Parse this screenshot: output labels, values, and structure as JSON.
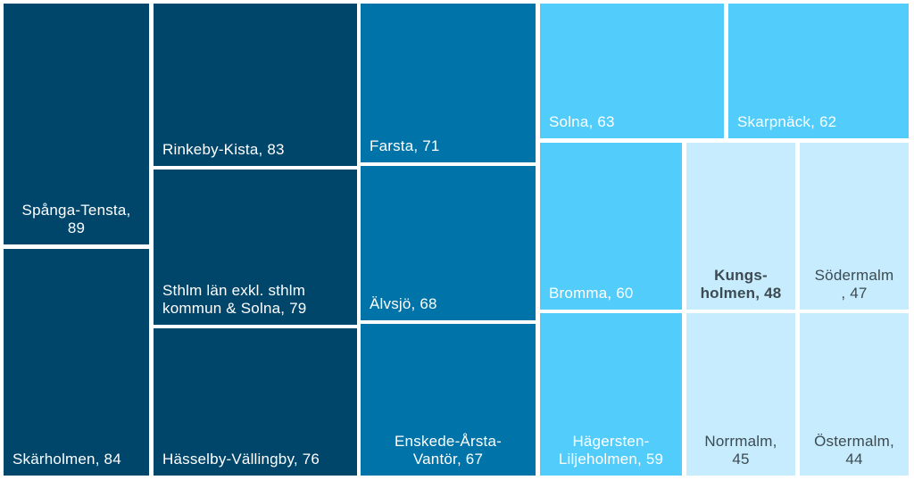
{
  "chart_data": {
    "type": "treemap",
    "title": "",
    "colors": {
      "dark": "#00466b",
      "mid": "#0074a8",
      "light": "#52cdfb",
      "pale": "#c6ecfd",
      "text_light": "#ffffff",
      "text_dark": "#3d4a52"
    },
    "items": [
      {
        "label": "Spånga-Tensta, 89",
        "lines": [
          "Spånga-Tensta,",
          "89"
        ],
        "value": 89
      },
      {
        "label": "Skärholmen, 84",
        "lines": [
          "Skärholmen, 84"
        ],
        "value": 84
      },
      {
        "label": "Rinkeby-Kista, 83",
        "lines": [
          "Rinkeby-Kista, 83"
        ],
        "value": 83
      },
      {
        "label": "Sthlm län exkl. sthlm kommun & Solna, 79",
        "lines": [
          "Sthlm län exkl. sthlm",
          "kommun & Solna, 79"
        ],
        "value": 79
      },
      {
        "label": "Hässelby-Vällingby, 76",
        "lines": [
          "Hässelby-Vällingby, 76"
        ],
        "value": 76
      },
      {
        "label": "Farsta, 71",
        "lines": [
          "Farsta, 71"
        ],
        "value": 71
      },
      {
        "label": "Älvsjö, 68",
        "lines": [
          "Älvsjö, 68"
        ],
        "value": 68
      },
      {
        "label": "Enskede-Årsta-Vantör, 67",
        "lines": [
          "Enskede-Årsta-",
          "Vantör, 67"
        ],
        "value": 67
      },
      {
        "label": "Solna, 63",
        "lines": [
          "Solna, 63"
        ],
        "value": 63
      },
      {
        "label": "Skarpnäck, 62",
        "lines": [
          "Skarpnäck, 62"
        ],
        "value": 62
      },
      {
        "label": "Bromma, 60",
        "lines": [
          "Bromma, 60"
        ],
        "value": 60
      },
      {
        "label": "Hägersten-Liljeholmen, 59",
        "lines": [
          "Hägersten-",
          "Liljeholmen, 59"
        ],
        "value": 59
      },
      {
        "label": "Kungsholmen, 48",
        "lines": [
          "Kungs-",
          "holmen, 48"
        ],
        "value": 48
      },
      {
        "label": "Södermalm, 47",
        "lines": [
          "Södermalm",
          ", 47"
        ],
        "value": 47
      },
      {
        "label": "Norrmalm, 45",
        "lines": [
          "Norrmalm,",
          "45"
        ],
        "value": 45
      },
      {
        "label": "Östermalm, 44",
        "lines": [
          "Östermalm,",
          "44"
        ],
        "value": 44
      }
    ]
  }
}
